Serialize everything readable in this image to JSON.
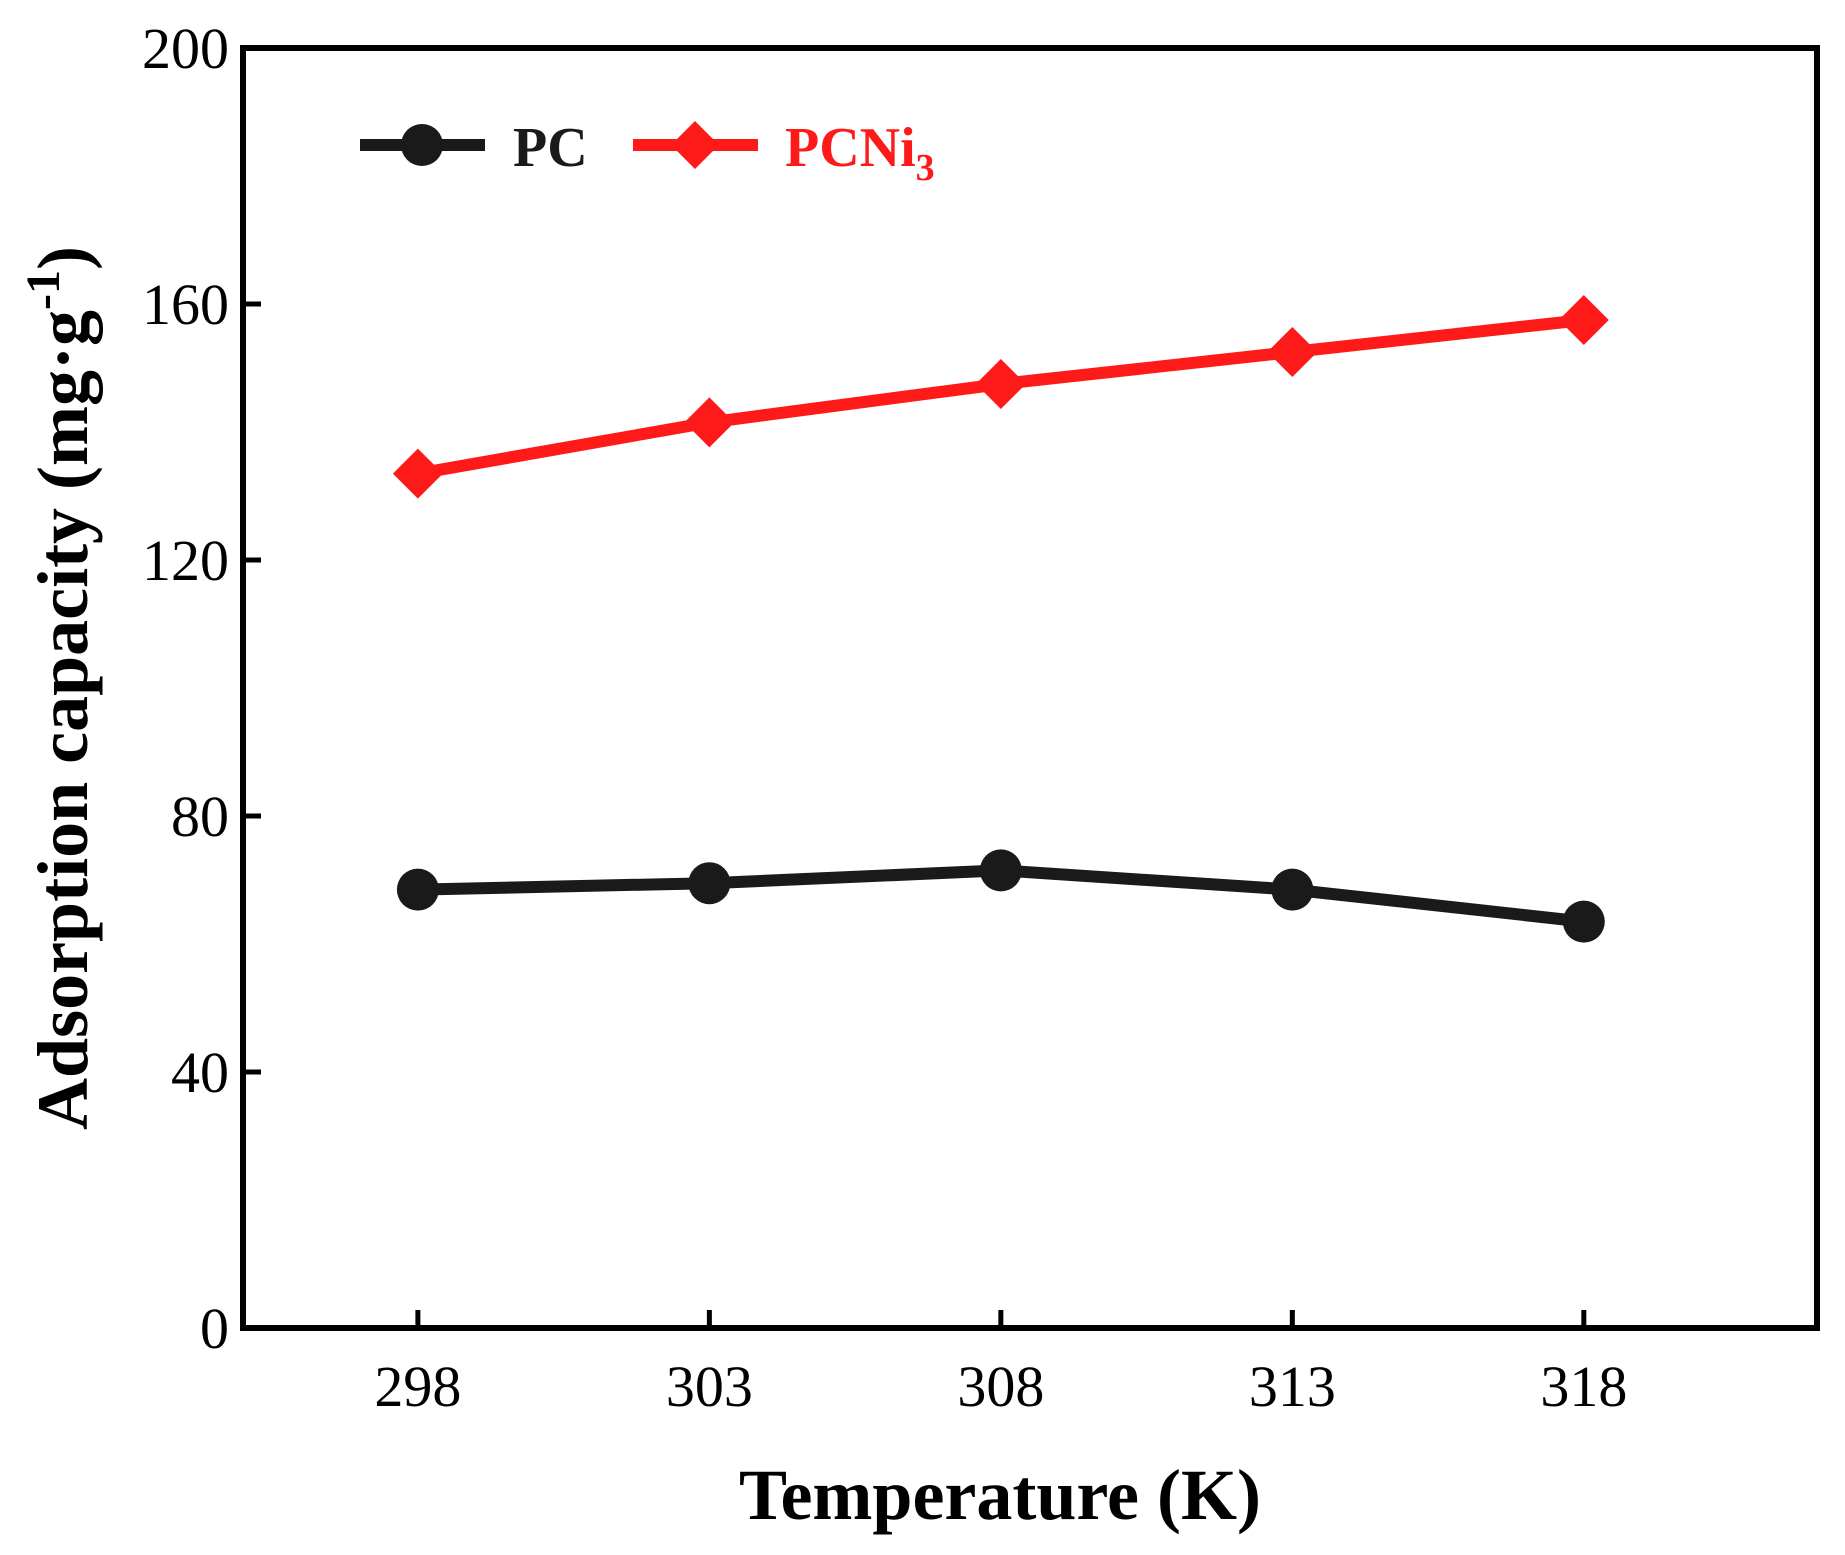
{
  "chart_data": {
    "type": "line",
    "title": "",
    "xlabel": "Temperature (K)",
    "ylabel": "Adsorption capacity (mg·g⁻¹)",
    "ylabel_main": "Adsorption capacity (mg·g",
    "ylabel_sup": "-1",
    "ylabel_close": ")",
    "categories": [
      "298",
      "303",
      "308",
      "313",
      "318"
    ],
    "x": [
      298,
      303,
      308,
      313,
      318
    ],
    "xlim": [
      295,
      322
    ],
    "ylim": [
      0,
      200
    ],
    "yticks": [
      0,
      40,
      80,
      120,
      160,
      200
    ],
    "grid": false,
    "legend_position": "top-left",
    "series": [
      {
        "name": "PC",
        "label_main": "PC",
        "label_sub": "",
        "color": "#1a1a1a",
        "marker": "circle",
        "values": [
          68.5,
          69.5,
          71.5,
          68.5,
          63.5
        ]
      },
      {
        "name": "PCNi3",
        "label_main": "PCNi",
        "label_sub": "3",
        "color": "#ff1a1a",
        "marker": "diamond",
        "values": [
          133.5,
          141.5,
          147.5,
          152.5,
          157.5
        ]
      }
    ]
  }
}
